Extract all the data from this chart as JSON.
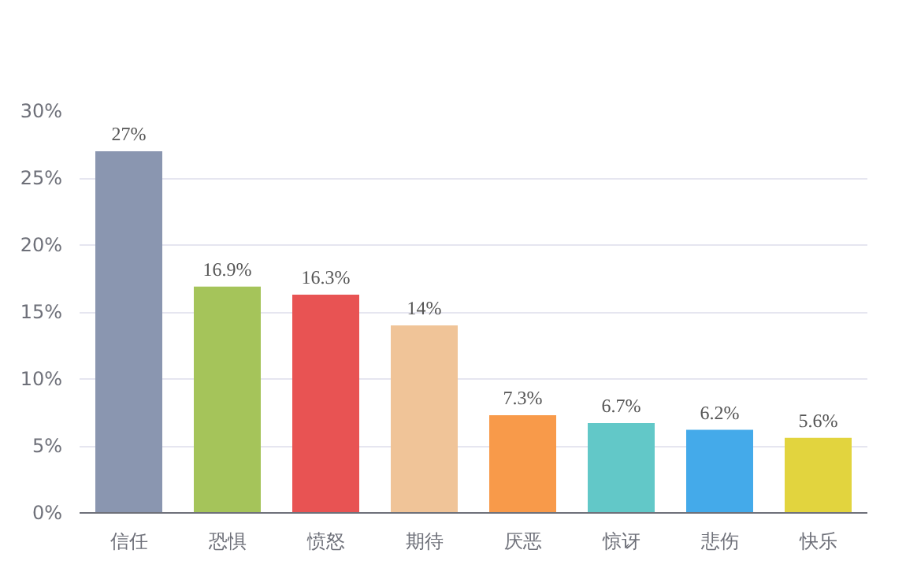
{
  "chart_data": {
    "type": "bar",
    "categories": [
      "信任",
      "恐惧",
      "愤怒",
      "期待",
      "厌恶",
      "惊讶",
      "悲伤",
      "快乐"
    ],
    "values": [
      27,
      16.9,
      16.3,
      14,
      7.3,
      6.7,
      6.2,
      5.6
    ],
    "colors": [
      "#8a96b0",
      "#a5c45a",
      "#e85353",
      "#f0c498",
      "#f89a4a",
      "#62c8c8",
      "#44aaea",
      "#e2d43e"
    ],
    "value_labels": [
      "27%",
      "16.9%",
      "16.3%",
      "14%",
      "7.3%",
      "6.7%",
      "6.2%",
      "5.6%"
    ],
    "ylim": [
      0,
      30
    ],
    "yticks": [
      {
        "value": 0,
        "label": "0%"
      },
      {
        "value": 5,
        "label": "5%"
      },
      {
        "value": 10,
        "label": "10%"
      },
      {
        "value": 15,
        "label": "15%"
      },
      {
        "value": 20,
        "label": "20%"
      },
      {
        "value": 25,
        "label": "25%"
      },
      {
        "value": 30,
        "label": "30%"
      }
    ],
    "grid": "y"
  }
}
